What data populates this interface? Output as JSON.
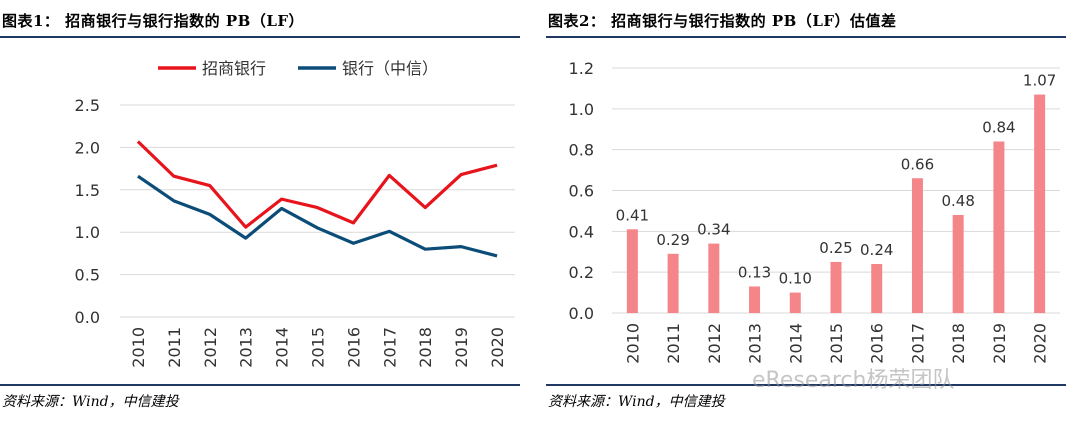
{
  "left": {
    "title": "图表1： 招商银行与银行指数的 PB（LF）",
    "source": "资料来源：Wind，中信建投"
  },
  "right": {
    "title": "图表2： 招商银行与银行指数的 PB（LF）估值差",
    "source": "资料来源：Wind，中信建投"
  },
  "watermark": "eResearch杨荣团队",
  "chart_data": [
    {
      "type": "line",
      "categories": [
        "2010",
        "2011",
        "2012",
        "2013",
        "2014",
        "2015",
        "2016",
        "2017",
        "2018",
        "2019",
        "2020"
      ],
      "series": [
        {
          "name": "招商银行",
          "color": "#e8141b",
          "values": [
            2.07,
            1.66,
            1.55,
            1.06,
            1.39,
            1.29,
            1.11,
            1.67,
            1.29,
            1.68,
            1.79
          ]
        },
        {
          "name": "银行（中信）",
          "color": "#0b4c78",
          "values": [
            1.66,
            1.37,
            1.21,
            0.93,
            1.28,
            1.05,
            0.87,
            1.01,
            0.8,
            0.83,
            0.72
          ]
        }
      ],
      "ylim": [
        0,
        2.5
      ],
      "yticks": [
        "0.0",
        "0.5",
        "1.0",
        "1.5",
        "2.0",
        "2.5"
      ],
      "grid": true,
      "legend": "top"
    },
    {
      "type": "bar",
      "categories": [
        "2010",
        "2011",
        "2012",
        "2013",
        "2014",
        "2015",
        "2016",
        "2017",
        "2018",
        "2019",
        "2020"
      ],
      "values": [
        0.41,
        0.29,
        0.34,
        0.13,
        0.1,
        0.25,
        0.24,
        0.66,
        0.48,
        0.84,
        1.07
      ],
      "labels": [
        "0.41",
        "0.29",
        "0.34",
        "0.13",
        "0.10",
        "0.25",
        "0.24",
        "0.66",
        "0.48",
        "0.84",
        "1.07"
      ],
      "color": "#f4868a",
      "ylim": [
        0,
        1.2
      ],
      "yticks": [
        "0.0",
        "0.2",
        "0.4",
        "0.6",
        "0.8",
        "1.0",
        "1.2"
      ],
      "grid": true
    }
  ]
}
